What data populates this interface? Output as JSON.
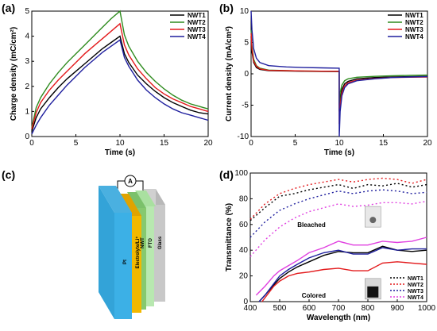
{
  "panels": {
    "a": "(a)",
    "b": "(b)",
    "c": "(c)",
    "d": "(d)"
  },
  "colors": {
    "NWT1": "#000000",
    "NWT2": "#2e8b1e",
    "NWT3": "#e31a1c",
    "NWT4": "#1f1f9e",
    "NWT4_d": "#e040e0"
  },
  "chart_data": [
    {
      "type": "line",
      "panel": "a",
      "xlabel": "Time (s)",
      "ylabel": "Charge density (mC/cm²)",
      "xlim": [
        0,
        20
      ],
      "ylim": [
        0,
        5
      ],
      "xticks": [
        0,
        5,
        10,
        15,
        20
      ],
      "yticks": [
        0,
        1,
        2,
        3,
        4,
        5
      ],
      "legend": "top-right",
      "series": [
        {
          "name": "NWT1",
          "color": "#000000",
          "x": [
            0,
            0.5,
            1,
            2,
            3,
            4,
            5,
            6,
            7,
            8,
            9,
            10,
            10.5,
            11,
            12,
            13,
            14,
            15,
            16,
            17,
            18,
            19,
            20
          ],
          "y": [
            0.2,
            0.75,
            1.1,
            1.55,
            1.95,
            2.3,
            2.6,
            2.9,
            3.2,
            3.5,
            3.75,
            4.0,
            3.3,
            2.95,
            2.45,
            2.1,
            1.8,
            1.55,
            1.35,
            1.2,
            1.05,
            0.95,
            0.9
          ]
        },
        {
          "name": "NWT2",
          "color": "#2e8b1e",
          "x": [
            0,
            0.5,
            1,
            2,
            3,
            4,
            5,
            6,
            7,
            8,
            9,
            10,
            10.5,
            11,
            12,
            13,
            14,
            15,
            16,
            17,
            18,
            19,
            20
          ],
          "y": [
            0.35,
            1.15,
            1.55,
            2.1,
            2.55,
            2.95,
            3.3,
            3.65,
            4.0,
            4.35,
            4.7,
            5.0,
            4.05,
            3.6,
            3.0,
            2.55,
            2.2,
            1.9,
            1.65,
            1.45,
            1.3,
            1.2,
            1.1
          ]
        },
        {
          "name": "NWT3",
          "color": "#e31a1c",
          "x": [
            0,
            0.5,
            1,
            2,
            3,
            4,
            5,
            6,
            7,
            8,
            9,
            10,
            10.5,
            11,
            12,
            13,
            14,
            15,
            16,
            17,
            18,
            19,
            20
          ],
          "y": [
            0.3,
            0.95,
            1.35,
            1.85,
            2.25,
            2.6,
            2.95,
            3.3,
            3.6,
            3.9,
            4.2,
            4.5,
            3.65,
            3.25,
            2.7,
            2.3,
            1.95,
            1.7,
            1.5,
            1.35,
            1.2,
            1.1,
            1.0
          ]
        },
        {
          "name": "NWT4",
          "color": "#1f1f9e",
          "x": [
            0,
            0.5,
            1,
            2,
            3,
            4,
            5,
            6,
            7,
            8,
            9,
            10,
            10.5,
            11,
            12,
            13,
            14,
            15,
            16,
            17,
            18,
            19,
            20
          ],
          "y": [
            0.1,
            0.45,
            0.75,
            1.25,
            1.65,
            2.05,
            2.4,
            2.75,
            3.05,
            3.35,
            3.6,
            3.85,
            3.15,
            2.8,
            2.25,
            1.85,
            1.55,
            1.3,
            1.1,
            0.95,
            0.85,
            0.75,
            0.65
          ]
        }
      ]
    },
    {
      "type": "line",
      "panel": "b",
      "xlabel": "Time (s)",
      "ylabel": "Current density (mA/cm²)",
      "xlim": [
        0,
        20
      ],
      "ylim": [
        -10,
        10
      ],
      "xticks": [
        0,
        5,
        10,
        15,
        20
      ],
      "yticks": [
        10,
        5,
        0,
        -5,
        -10
      ],
      "legend": "top-right",
      "series": [
        {
          "name": "NWT1",
          "color": "#000000",
          "x": [
            0,
            0.1,
            0.3,
            0.6,
            1,
            2,
            4,
            6,
            8,
            9.99,
            10,
            10.1,
            10.3,
            10.6,
            11,
            12,
            14,
            16,
            18,
            20
          ],
          "y": [
            6,
            3.5,
            1.8,
            1.0,
            0.7,
            0.5,
            0.45,
            0.4,
            0.38,
            0.35,
            -6,
            -4,
            -2.5,
            -1.6,
            -1.2,
            -0.8,
            -0.6,
            -0.5,
            -0.45,
            -0.4
          ]
        },
        {
          "name": "NWT2",
          "color": "#2e8b1e",
          "x": [
            0,
            0.1,
            0.3,
            0.6,
            1,
            2,
            4,
            6,
            8,
            9.99,
            10,
            10.1,
            10.3,
            10.6,
            11,
            12,
            14,
            16,
            18,
            20
          ],
          "y": [
            7,
            4.5,
            2.3,
            1.3,
            0.9,
            0.6,
            0.5,
            0.45,
            0.42,
            0.4,
            -5,
            -3,
            -1.8,
            -1.1,
            -0.8,
            -0.55,
            -0.4,
            -0.3,
            -0.25,
            -0.2
          ]
        },
        {
          "name": "NWT3",
          "color": "#e31a1c",
          "x": [
            0,
            0.1,
            0.3,
            0.6,
            1,
            2,
            4,
            6,
            8,
            9.99,
            10,
            10.1,
            10.3,
            10.6,
            11,
            12,
            14,
            16,
            18,
            20
          ],
          "y": [
            6.5,
            4,
            2,
            1.2,
            0.8,
            0.55,
            0.5,
            0.45,
            0.42,
            0.4,
            -8,
            -5,
            -3,
            -1.9,
            -1.4,
            -1.0,
            -0.75,
            -0.6,
            -0.55,
            -0.5
          ]
        },
        {
          "name": "NWT4",
          "color": "#1f1f9e",
          "x": [
            0,
            0.1,
            0.3,
            0.6,
            1,
            2,
            4,
            6,
            8,
            9.99,
            10,
            10.1,
            10.3,
            10.6,
            11,
            12,
            14,
            16,
            18,
            20
          ],
          "y": [
            10,
            7,
            4,
            2.5,
            1.8,
            1.3,
            1.1,
            1.0,
            0.95,
            0.9,
            -10,
            -6,
            -3.5,
            -2.2,
            -1.6,
            -1.1,
            -0.8,
            -0.6,
            -0.5,
            -0.45
          ]
        }
      ]
    },
    {
      "type": "line",
      "panel": "d",
      "xlabel": "Wavelength (nm)",
      "ylabel": "Transmittance (%)",
      "xlim": [
        400,
        1000
      ],
      "ylim": [
        0,
        100
      ],
      "xticks": [
        400,
        500,
        600,
        700,
        800,
        900,
        1000
      ],
      "yticks": [
        0,
        20,
        40,
        60,
        80,
        100
      ],
      "legend": "bottom-right",
      "annotations": [
        "Bleached",
        "Colored"
      ],
      "bleached_series": [
        {
          "name": "NWT1",
          "color": "#000000",
          "x": [
            400,
            450,
            500,
            550,
            600,
            650,
            700,
            750,
            800,
            850,
            900,
            950,
            1000
          ],
          "y": [
            63,
            73,
            82,
            84,
            87,
            89,
            91,
            88,
            91,
            90,
            92,
            89,
            91
          ]
        },
        {
          "name": "NWT2",
          "color": "#e31a1c",
          "x": [
            400,
            450,
            500,
            550,
            600,
            650,
            700,
            750,
            800,
            850,
            900,
            950,
            1000
          ],
          "y": [
            64,
            76,
            84,
            88,
            91,
            93,
            95,
            93,
            95,
            96,
            95,
            92,
            95
          ]
        },
        {
          "name": "NWT3",
          "color": "#1f1f9e",
          "x": [
            400,
            450,
            500,
            550,
            600,
            650,
            700,
            750,
            800,
            850,
            900,
            950,
            1000
          ],
          "y": [
            50,
            62,
            71,
            76,
            80,
            83,
            86,
            84,
            86,
            87,
            86,
            84,
            85
          ]
        },
        {
          "name": "NWT4",
          "color": "#e040e0",
          "x": [
            400,
            450,
            500,
            550,
            600,
            650,
            700,
            750,
            800,
            850,
            900,
            950,
            1000
          ],
          "y": [
            35,
            48,
            58,
            65,
            70,
            73,
            76,
            74,
            75,
            77,
            77,
            76,
            78
          ]
        }
      ],
      "colored_series": [
        {
          "name": "NWT1",
          "color": "#000000",
          "x": [
            430,
            450,
            480,
            500,
            530,
            560,
            600,
            650,
            700,
            750,
            800,
            850,
            900,
            950,
            1000
          ],
          "y": [
            0,
            5,
            13,
            18,
            23,
            27,
            31,
            36,
            39,
            38,
            38,
            43,
            40,
            39,
            40
          ]
        },
        {
          "name": "NWT2",
          "color": "#e31a1c",
          "x": [
            440,
            460,
            480,
            500,
            530,
            560,
            600,
            650,
            700,
            750,
            800,
            850,
            900,
            950,
            1000
          ],
          "y": [
            0,
            6,
            12,
            16,
            20,
            22,
            23,
            25,
            26,
            24,
            24,
            30,
            31,
            30,
            29
          ]
        },
        {
          "name": "NWT3",
          "color": "#1f1f9e",
          "x": [
            430,
            450,
            480,
            500,
            530,
            560,
            600,
            650,
            700,
            750,
            800,
            850,
            900,
            950,
            1000
          ],
          "y": [
            0,
            5,
            14,
            20,
            25,
            29,
            34,
            38,
            40,
            37,
            37,
            42,
            40,
            41,
            41
          ]
        },
        {
          "name": "NWT4",
          "color": "#e040e0",
          "x": [
            420,
            450,
            480,
            500,
            530,
            560,
            600,
            650,
            700,
            750,
            800,
            850,
            900,
            950,
            1000
          ],
          "y": [
            5,
            12,
            20,
            24,
            28,
            32,
            38,
            42,
            47,
            44,
            44,
            47,
            46,
            47,
            50
          ]
        }
      ]
    }
  ],
  "diagram_c": {
    "ammeter": "A",
    "layers": [
      "Pt",
      "Electrolyte/Li⁺",
      "NWT",
      "FTO",
      "Glass"
    ]
  }
}
